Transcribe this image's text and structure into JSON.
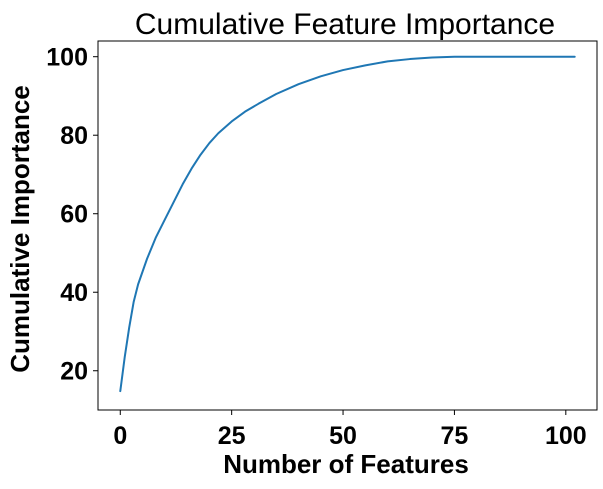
{
  "chart_data": {
    "type": "line",
    "title": "Cumulative Feature Importance",
    "xlabel": "Number of Features",
    "ylabel": "Cumulative Importance",
    "xlim": [
      -5,
      107
    ],
    "ylim": [
      10,
      104
    ],
    "xticks": [
      0,
      25,
      50,
      75,
      100
    ],
    "yticks": [
      20,
      40,
      60,
      80,
      100
    ],
    "grid": false,
    "line_color": "#1f77b4",
    "series": [
      {
        "x": [
          0,
          1,
          2,
          3,
          4,
          6,
          8,
          10,
          12,
          14,
          16,
          18,
          20,
          22,
          25,
          28,
          31,
          35,
          40,
          45,
          50,
          55,
          60,
          65,
          70,
          75,
          80,
          90,
          102
        ],
        "y": [
          14.8,
          23.5,
          31.0,
          37.5,
          42.0,
          48.5,
          54.0,
          58.5,
          63.0,
          67.5,
          71.5,
          75.0,
          78.0,
          80.5,
          83.5,
          86.0,
          88.0,
          90.5,
          93.0,
          95.0,
          96.6,
          97.8,
          98.8,
          99.4,
          99.8,
          100.0,
          100.0,
          100.0,
          100.0
        ]
      }
    ]
  }
}
